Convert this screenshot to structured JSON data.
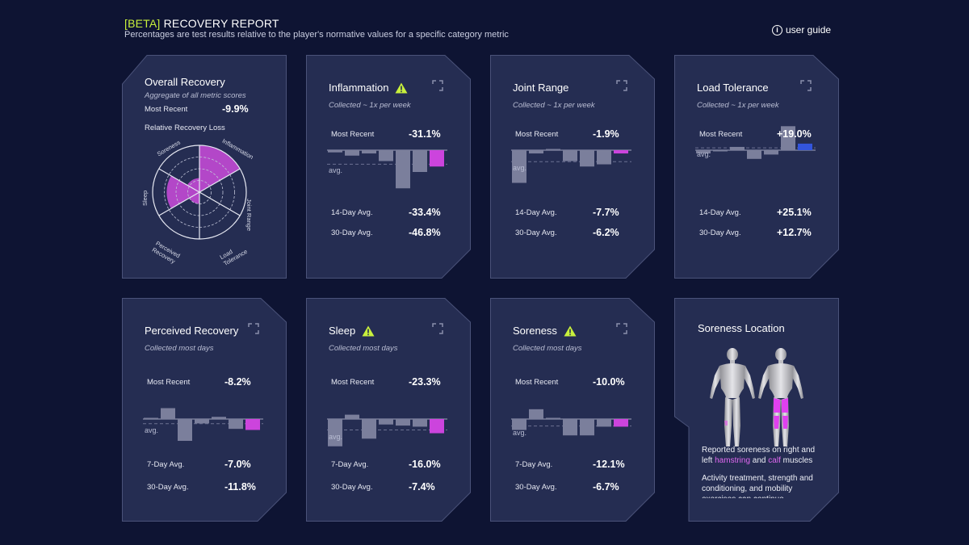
{
  "header": {
    "beta": "[BETA]",
    "title": "RECOVERY REPORT",
    "subtitle": "Percentages are test results relative to the player's normative values for a specific category metric",
    "guide_label": "user guide"
  },
  "overall": {
    "title": "Overall Recovery",
    "subtitle": "Aggregate of all metric scores",
    "most_recent_label": "Most Recent",
    "most_recent_value": "-9.9%",
    "loss_label": "Relative Recovery Loss",
    "radar_labels": {
      "soreness": "Soreness",
      "inflammation": "Inflammation",
      "joint_range": "Joint Range",
      "sleep": "Sleep",
      "perceived_1": "Perceived",
      "perceived_2": "Recovery",
      "load_1": "Load",
      "load_2": "Tolerance"
    },
    "radar_values": {
      "inflammation": 1.0,
      "joint_range": 0.0,
      "load_tolerance": 0.0,
      "perceived_recovery": 0.25,
      "sleep": 0.7,
      "soreness": 0.3
    }
  },
  "metrics": {
    "inflammation": {
      "title": "Inflammation",
      "subtitle": "Collected ~ 1x per week",
      "most_recent_label": "Most Recent",
      "most_recent": "-31.1%",
      "avg1_label": "14-Day Avg.",
      "avg1": "-33.4%",
      "avg2_label": "30-Day Avg.",
      "avg2": "-46.8%",
      "avg_tag": "avg.",
      "bars": [
        -2,
        -5,
        -3,
        -10,
        -35,
        -20,
        -15
      ]
    },
    "joint_range": {
      "title": "Joint Range",
      "subtitle": "Collected ~ 1x per week",
      "most_recent_label": "Most Recent",
      "most_recent": "-1.9%",
      "avg1_label": "14-Day Avg.",
      "avg1": "-7.7%",
      "avg2_label": "30-Day Avg.",
      "avg2": "-6.2%",
      "avg_tag": "avg.",
      "bars": [
        -30,
        -3,
        0,
        -10,
        -15,
        -13,
        -3
      ]
    },
    "load_tolerance": {
      "title": "Load Tolerance",
      "subtitle": "Collected ~ 1x per week",
      "most_recent_label": "Most Recent",
      "most_recent": "+19.0%",
      "avg1_label": "14-Day Avg.",
      "avg1": "+25.1%",
      "avg2_label": "30-Day Avg.",
      "avg2": "+12.7%",
      "avg_tag": "avg.",
      "bars": [
        -3,
        -1,
        3,
        -8,
        -4,
        22,
        6
      ]
    },
    "perceived_recovery": {
      "title": "Perceived Recovery",
      "subtitle": "Collected most days",
      "most_recent_label": "Most Recent",
      "most_recent": "-8.2%",
      "avg1_label": "7-Day Avg.",
      "avg1": "-7.0%",
      "avg2_label": "30-Day Avg.",
      "avg2": "-11.8%",
      "avg_tag": "avg.",
      "bars": [
        1,
        10,
        -20,
        -4,
        2,
        -9,
        -10
      ]
    },
    "sleep": {
      "title": "Sleep",
      "subtitle": "Collected most days",
      "most_recent_label": "Most Recent",
      "most_recent": "-23.3%",
      "avg1_label": "7-Day Avg.",
      "avg1": "-16.0%",
      "avg2_label": "30-Day Avg.",
      "avg2": "-7.4%",
      "avg_tag": "avg.",
      "bars": [
        -25,
        4,
        -18,
        -5,
        -6,
        -7,
        -13
      ]
    },
    "soreness": {
      "title": "Soreness",
      "subtitle": "Collected most days",
      "most_recent_label": "Most Recent",
      "most_recent": "-10.0%",
      "avg1_label": "7-Day Avg.",
      "avg1": "-12.1%",
      "avg2_label": "30-Day Avg.",
      "avg2": "-6.7%",
      "avg_tag": "avg.",
      "bars": [
        -10,
        9,
        0,
        -15,
        -15,
        -7,
        -7
      ]
    }
  },
  "soreness_location": {
    "title": "Soreness Location",
    "line1_a": "Reported soreness on right and",
    "line2_a": "left ",
    "line2_b": "hamstring",
    "line2_c": " and ",
    "line2_d": "calf",
    "line2_e": " muscles",
    "para2": "Activity treatment, strength and conditioning, and mobility exercises can continue"
  },
  "colors": {
    "background": "#0e1433",
    "card": "#252d52",
    "bar": "#7b7f9c",
    "accent_pink": "#cc44dd",
    "accent_blue": "#3355dd",
    "beta": "#c8f03c",
    "warn": "#c8f03c"
  }
}
